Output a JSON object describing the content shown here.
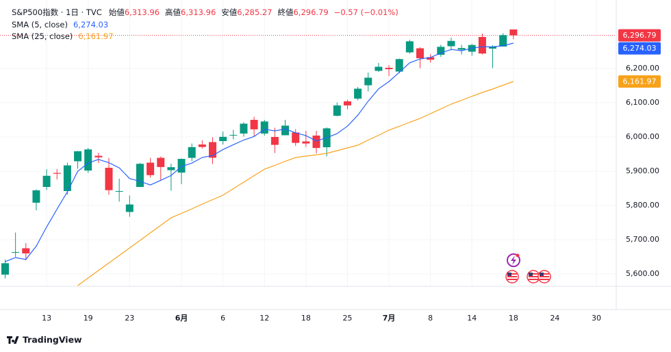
{
  "chart_data": {
    "type": "candlestick",
    "legend": {
      "title": "S&P500指数 · 1日 · TVC",
      "ohlc": [
        {
          "label": "始値",
          "value": "6,313.96"
        },
        {
          "label": "高値",
          "value": "6,313.96"
        },
        {
          "label": "安値",
          "value": "6,285.27"
        },
        {
          "label": "終値",
          "value": "6,296.79"
        }
      ],
      "change": "−0.57 (−0.01%)"
    },
    "brand": "TradingView",
    "categories": [
      null,
      null,
      null,
      null,
      "13",
      null,
      null,
      null,
      "19",
      null,
      null,
      null,
      "23",
      null,
      null,
      null,
      null,
      "6月",
      null,
      null,
      null,
      "6",
      null,
      null,
      null,
      "12",
      null,
      null,
      null,
      "18",
      null,
      null,
      null,
      "25",
      null,
      null,
      null,
      "7月",
      null,
      null,
      null,
      "8",
      null,
      null,
      null,
      "14",
      null,
      null,
      null,
      "18",
      null,
      null,
      null,
      "24",
      null,
      null,
      null,
      "30"
    ],
    "series": [
      {
        "name": "S&P500指数",
        "type": "candlestick",
        "up_color": "#089981",
        "down_color": "#f23645",
        "open": [
          5598,
          5663,
          5675,
          5808,
          5854,
          5895,
          5842,
          5929,
          5902,
          5945,
          5910,
          5841,
          5781,
          5854,
          5925,
          5939,
          5903,
          5896,
          5939,
          5978,
          5985,
          5988,
          6004,
          6010,
          6050,
          6010,
          6000,
          6005,
          6013,
          5987,
          6004,
          5970,
          6062,
          6104,
          6112,
          6151,
          6193,
          6202,
          6191,
          6247,
          6259,
          6233,
          6240,
          6265,
          6255,
          6249,
          6292,
          6258,
          6264,
          6313.96,
          null,
          null,
          null,
          null,
          null,
          null,
          null,
          null
        ],
        "high": [
          5642,
          5721,
          5690,
          5847,
          5906,
          5906,
          5925,
          5959,
          5968,
          5954,
          5939,
          5878,
          5829,
          5924,
          5939,
          5943,
          5922,
          5937,
          5981,
          5990,
          5999,
          6016,
          6021,
          6043,
          6059,
          6050,
          6027,
          6050,
          6023,
          6018,
          6018,
          6028,
          6101,
          6109,
          6146,
          6188,
          6216,
          6210,
          6229,
          6284,
          6262,
          6242,
          6269,
          6290,
          6269,
          6272,
          6302,
          6268,
          6303,
          6313.96,
          null,
          null,
          null,
          null,
          null,
          null,
          null,
          null
        ],
        "low": [
          5587,
          5650,
          5640,
          5786,
          5845,
          5876,
          5831,
          5907,
          5895,
          5924,
          5831,
          5811,
          5767,
          5854,
          5881,
          5874,
          5843,
          5862,
          5929,
          5966,
          5921,
          5978,
          5993,
          6001,
          6003,
          6004,
          5953,
          6005,
          5974,
          5971,
          5952,
          5943,
          6060,
          6081,
          6107,
          6133,
          6190,
          6178,
          6186,
          6243,
          6201,
          6217,
          6234,
          6253,
          6241,
          6237,
          6241,
          6201,
          6264,
          6285.27,
          null,
          null,
          null,
          null,
          null,
          null,
          null,
          null
        ],
        "close": [
          5631.28,
          5663.94,
          5659.91,
          5844.19,
          5886.55,
          5892.58,
          5916.93,
          5958.38,
          5963.6,
          5940.46,
          5844.61,
          5842.01,
          5802.82,
          5921.54,
          5888.55,
          5912.17,
          5911.69,
          5935.94,
          5970.37,
          5970.81,
          5939.3,
          6000.36,
          6005.88,
          6038.81,
          6022.24,
          6045.26,
          5976.97,
          6033.11,
          5982.72,
          5980.87,
          5967.84,
          6025.17,
          6092.18,
          6092.16,
          6141.02,
          6173.07,
          6204.95,
          6198.01,
          6227.42,
          6279.35,
          6229.98,
          6225.52,
          6263.26,
          6280.46,
          6259.75,
          6268.56,
          6243.76,
          6263.7,
          6297.36,
          6296.79,
          null,
          null,
          null,
          null,
          null,
          null,
          null,
          null
        ]
      },
      {
        "name": "SMA (5, close)",
        "type": "line",
        "color": "#2962ff",
        "value_label": "6,274.03",
        "values": [
          5635.9,
          5647.8,
          5642.5,
          5681.2,
          5737.2,
          5789.4,
          5840.0,
          5899.7,
          5923.6,
          5934.4,
          5924.8,
          5909.8,
          5878.7,
          5870.3,
          5859.9,
          5873.4,
          5887.4,
          5914.0,
          5923.7,
          5940.2,
          5945.6,
          5963.4,
          5977.3,
          5991.0,
          6001.3,
          6022.5,
          6017.8,
          6023.3,
          6012.1,
          6003.8,
          5988.3,
          5997.9,
          6009.8,
          6031.6,
          6063.7,
          6104.7,
          6140.7,
          6161.8,
          6188.9,
          6216.6,
          6227.9,
          6232.1,
          6245.1,
          6255.7,
          6251.8,
          6259.5,
          6263.2,
          6263.2,
          6266.6,
          6274.03,
          null,
          null,
          null,
          null,
          null,
          null,
          null,
          null
        ]
      },
      {
        "name": "SMA (25, close)",
        "type": "line",
        "color": "#f7a21b",
        "value_label": "6,161.97",
        "values": [
          null,
          null,
          null,
          null,
          null,
          null,
          null,
          5566,
          5588,
          5610,
          5632,
          5654,
          5676,
          5698,
          5720,
          5742,
          5764,
          5777,
          5790,
          5804,
          5817,
          5830,
          5849,
          5868,
          5887,
          5906,
          5917,
          5929,
          5940,
          5944,
          5948,
          5952,
          5960,
          5968,
          5976,
          5991,
          6005,
          6020,
          6031,
          6043,
          6054,
          6068,
          6082,
          6096,
          6107,
          6119,
          6130,
          6140,
          6151,
          6161.97,
          null,
          null,
          null,
          null,
          null,
          null,
          null,
          null
        ]
      }
    ],
    "ylim": [
      5564,
      6400
    ],
    "yticks": [
      {
        "value": 5600,
        "label": "5,600.00"
      },
      {
        "value": 5700,
        "label": "5,700.00"
      },
      {
        "value": 5800,
        "label": "5,800.00"
      },
      {
        "value": 5900,
        "label": "5,900.00"
      },
      {
        "value": 6000,
        "label": "6,000.00"
      },
      {
        "value": 6100,
        "label": "6,100.00"
      },
      {
        "value": 6200,
        "label": "6,200.00"
      }
    ],
    "grid": true
  }
}
